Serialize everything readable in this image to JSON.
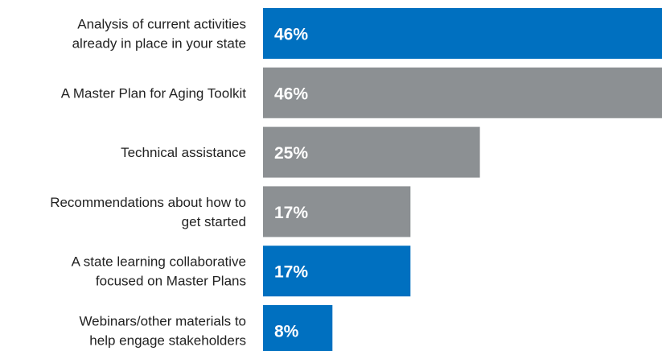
{
  "chart_data": {
    "type": "bar",
    "orientation": "horizontal",
    "categories": [
      [
        "Analysis of current activities",
        "already in place in your state"
      ],
      [
        "A Master Plan for Aging Toolkit"
      ],
      [
        "Technical assistance"
      ],
      [
        "Recommendations about how to",
        "get started"
      ],
      [
        "A state learning collaborative",
        "focused on Master Plans"
      ],
      [
        "Webinars/other materials to",
        "help engage stakeholders"
      ]
    ],
    "values": [
      46,
      46,
      25,
      17,
      17,
      8
    ],
    "value_labels": [
      "46%",
      "46%",
      "25%",
      "17%",
      "17%",
      "8%"
    ],
    "bar_colors": [
      "#0070c0",
      "#8c9093",
      "#8c9093",
      "#8c9093",
      "#0070c0",
      "#0070c0"
    ],
    "xlim": [
      0,
      46
    ],
    "title": "",
    "xlabel": "",
    "ylabel": "",
    "grid": false,
    "legend": "none"
  }
}
